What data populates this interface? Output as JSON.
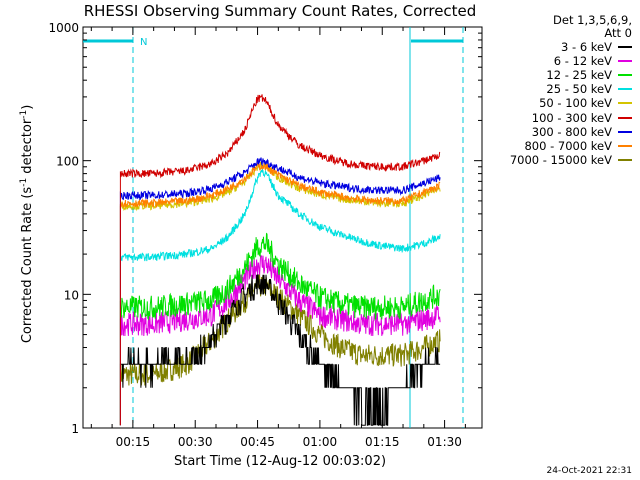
{
  "chart_data": {
    "type": "line",
    "title": "RHESSI Observing Summary Count Rates, Corrected",
    "xlabel": "Start Time (12-Aug-12 00:03:02)",
    "ylabel_main": "Corrected Count Rate (s",
    "ylabel_sup1": "-1",
    "ylabel_mid": " detector",
    "ylabel_sup2": "-1",
    "ylabel_end": ")",
    "yscale": "log",
    "ylim": [
      1,
      1000
    ],
    "xlim": [
      3,
      99
    ],
    "x_unit": "minutes after 00:00",
    "yticks": [
      {
        "value": 1,
        "label": "1"
      },
      {
        "value": 10,
        "label": "10"
      },
      {
        "value": 100,
        "label": "100"
      },
      {
        "value": 1000,
        "label": "1000"
      }
    ],
    "xticks": [
      {
        "value": 15,
        "label": "00:15"
      },
      {
        "value": 30,
        "label": "00:30"
      },
      {
        "value": 45,
        "label": "00:45"
      },
      {
        "value": 60,
        "label": "01:00"
      },
      {
        "value": 75,
        "label": "01:15"
      },
      {
        "value": 90,
        "label": "01:30"
      }
    ],
    "legend_header": [
      "Det 1,3,5,6,9,",
      "Att 0"
    ],
    "legend_position": "right",
    "series": [
      {
        "name": "3 - 6 keV",
        "color": "#000000",
        "x": [
          12,
          20,
          28,
          34,
          38,
          42,
          45,
          47,
          50,
          55,
          60,
          65,
          70,
          75,
          80,
          82,
          85,
          88,
          89
        ],
        "y": [
          3,
          3,
          3.2,
          4.5,
          7,
          10,
          12,
          12,
          9,
          5,
          3,
          2,
          1.5,
          1.5,
          2,
          2.5,
          3,
          3,
          3
        ]
      },
      {
        "name": "6 - 12 keV",
        "color": "#e000e0",
        "x": [
          12,
          20,
          28,
          34,
          38,
          42,
          45,
          47,
          50,
          55,
          60,
          65,
          70,
          75,
          80,
          85,
          89
        ],
        "y": [
          6,
          6,
          6.5,
          7,
          9,
          13,
          17,
          17,
          13,
          9,
          7,
          6.5,
          6,
          6,
          6,
          6.5,
          7
        ]
      },
      {
        "name": "12 - 25 keV",
        "color": "#00e000",
        "x": [
          12,
          20,
          28,
          34,
          38,
          42,
          45,
          47,
          50,
          55,
          60,
          65,
          70,
          75,
          80,
          85,
          89
        ],
        "y": [
          8,
          8,
          8.5,
          9,
          11,
          16,
          23,
          24,
          17,
          12,
          9.5,
          8.5,
          8,
          8,
          8,
          9,
          10
        ]
      },
      {
        "name": "25 - 50 keV",
        "color": "#00e0e0",
        "x": [
          12,
          20,
          28,
          34,
          38,
          42,
          45,
          46,
          47,
          50,
          55,
          60,
          65,
          70,
          75,
          80,
          85,
          89
        ],
        "y": [
          19,
          19,
          20,
          22,
          27,
          40,
          75,
          85,
          80,
          55,
          40,
          32,
          28,
          25,
          23,
          22,
          24,
          27
        ]
      },
      {
        "name": "50 - 100 keV",
        "color": "#d4c400",
        "x": [
          12,
          20,
          28,
          34,
          38,
          42,
          45,
          46,
          47,
          50,
          55,
          60,
          65,
          70,
          75,
          80,
          85,
          89
        ],
        "y": [
          46,
          46,
          48,
          52,
          58,
          70,
          90,
          92,
          90,
          75,
          62,
          56,
          52,
          50,
          48,
          48,
          55,
          63
        ]
      },
      {
        "name": "100 - 300 keV",
        "color": "#d00000",
        "x": [
          12,
          20,
          28,
          34,
          38,
          42,
          44,
          45,
          46,
          47,
          50,
          55,
          60,
          65,
          70,
          75,
          80,
          85,
          89
        ],
        "y": [
          80,
          80,
          84,
          95,
          115,
          170,
          250,
          290,
          295,
          280,
          185,
          130,
          110,
          98,
          92,
          90,
          90,
          100,
          110
        ]
      },
      {
        "name": "300 - 800 keV",
        "color": "#0000e0",
        "x": [
          12,
          20,
          28,
          34,
          38,
          42,
          45,
          46,
          47,
          50,
          55,
          60,
          65,
          70,
          75,
          80,
          85,
          89
        ],
        "y": [
          55,
          55,
          57,
          62,
          70,
          82,
          98,
          100,
          98,
          88,
          75,
          68,
          64,
          61,
          60,
          60,
          68,
          75
        ]
      },
      {
        "name": "800 - 7000 keV",
        "color": "#ff8000",
        "x": [
          12,
          20,
          28,
          34,
          38,
          42,
          45,
          46,
          47,
          50,
          55,
          60,
          65,
          70,
          75,
          80,
          85,
          89
        ],
        "y": [
          48,
          48,
          50,
          55,
          62,
          74,
          90,
          92,
          90,
          78,
          65,
          58,
          54,
          51,
          50,
          50,
          58,
          65
        ]
      },
      {
        "name": "7000 - 15000 keV",
        "color": "#808000",
        "x": [
          12,
          20,
          28,
          34,
          38,
          42,
          45,
          47,
          50,
          55,
          60,
          65,
          70,
          75,
          80,
          85,
          89
        ],
        "y": [
          2.5,
          2.5,
          3,
          4.5,
          6.5,
          9,
          11.5,
          11.5,
          9.5,
          7,
          5,
          4,
          3.5,
          3.5,
          3.5,
          4,
          4.5
        ]
      }
    ],
    "annotations": [
      {
        "text": "N",
        "color": "#00c8d8"
      }
    ]
  },
  "footer": "24-Oct-2021 22:31",
  "colors": {
    "axes": "#000000",
    "attenuator_marker": "#00c8d8"
  }
}
